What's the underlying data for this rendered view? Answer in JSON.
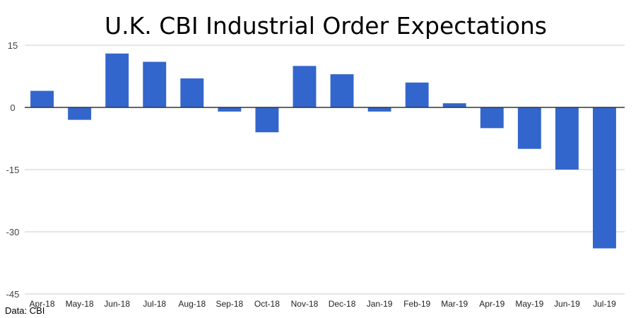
{
  "chart_data": {
    "type": "bar",
    "title": "U.K. CBI Industrial Order Expectations",
    "xlabel": "",
    "ylabel": "",
    "categories": [
      "Apr-18",
      "May-18",
      "Jun-18",
      "Jul-18",
      "Aug-18",
      "Sep-18",
      "Oct-18",
      "Nov-18",
      "Dec-18",
      "Jan-19",
      "Feb-19",
      "Mar-19",
      "Apr-19",
      "May-19",
      "Jun-19",
      "Jul-19"
    ],
    "values": [
      4,
      -3,
      13,
      11,
      7,
      -1,
      -6,
      10,
      8,
      -1,
      6,
      1,
      -5,
      -10,
      -15,
      -34
    ],
    "ylim": [
      -45,
      15
    ],
    "yticks": [
      "15",
      "0",
      "-15",
      "-30",
      "-45"
    ],
    "ytick_values": [
      15,
      0,
      -15,
      -30,
      -45
    ],
    "grid": true,
    "legend": "none",
    "source": "Data: CBI",
    "colors": {
      "bar": "#3366cc",
      "grid": "#cccccc",
      "zero_line": "#333333"
    }
  }
}
